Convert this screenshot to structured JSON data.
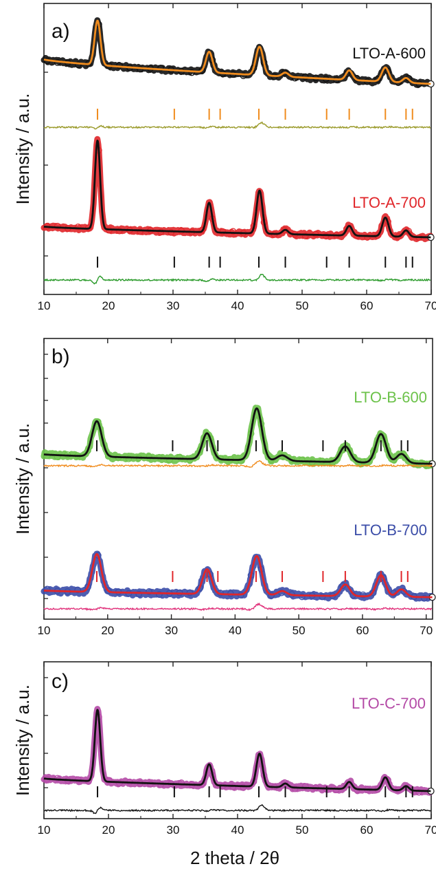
{
  "figure": {
    "x_axis_title": "2 theta / 2θ"
  },
  "chart_data": [
    {
      "panel": "a)",
      "type": "line",
      "ylabel": "Intensity / a.u.",
      "xlim": [
        10,
        70
      ],
      "x_ticks": [
        10,
        20,
        30,
        40,
        50,
        60,
        70
      ],
      "y_tick_count": 3,
      "grid": false,
      "tick_marks_reflections": [
        18.3,
        30.2,
        35.6,
        37.3,
        43.3,
        47.4,
        53.8,
        57.3,
        62.9,
        66.1,
        67.1
      ],
      "series": [
        {
          "name": "LTO-A-600",
          "label_color": "#111111",
          "observed_color": "#111111",
          "fit_color": "#f08c1e",
          "tick_color": "#f08c1e",
          "diff_color": "#9a9a2a",
          "baseline": [
            0.83,
            0.52
          ],
          "peaks": [
            [
              18.3,
              0.56,
              0.45
            ],
            [
              35.6,
              0.26,
              0.5
            ],
            [
              43.4,
              0.36,
              0.55
            ],
            [
              47.4,
              0.05,
              0.5
            ],
            [
              57.3,
              0.12,
              0.5
            ],
            [
              62.9,
              0.18,
              0.55
            ],
            [
              66.1,
              0.06,
              0.5
            ]
          ]
        },
        {
          "name": "LTO-A-700",
          "label_color": "#e0262a",
          "observed_color": "#e0262a",
          "fit_color": "#111111",
          "tick_color": "#111111",
          "diff_color": "#2a9a2a",
          "baseline": [
            0.68,
            0.48
          ],
          "peaks": [
            [
              18.3,
              1.65,
              0.4
            ],
            [
              35.6,
              0.55,
              0.42
            ],
            [
              43.4,
              0.8,
              0.45
            ],
            [
              47.4,
              0.08,
              0.45
            ],
            [
              57.3,
              0.18,
              0.45
            ],
            [
              62.9,
              0.35,
              0.48
            ],
            [
              66.1,
              0.12,
              0.45
            ]
          ]
        }
      ]
    },
    {
      "panel": "b)",
      "type": "line",
      "ylabel": "Intensity / a.u.",
      "xlim": [
        10,
        70
      ],
      "x_ticks": [
        10,
        20,
        30,
        40,
        50,
        60,
        70
      ],
      "y_tick_count": 8,
      "grid": false,
      "tick_marks_reflections": [
        18.3,
        30.2,
        35.6,
        37.3,
        43.3,
        47.4,
        53.8,
        57.3,
        62.9,
        66.1,
        67.1
      ],
      "series": [
        {
          "name": "LTO-B-600",
          "label_color": "#6cc24a",
          "observed_color": "#6cc24a",
          "fit_color": "#111111",
          "tick_color": "#111111",
          "diff_color": "#f08c1e",
          "baseline": [
            0.56,
            0.46
          ],
          "peaks": [
            [
              18.3,
              0.38,
              0.75
            ],
            [
              35.6,
              0.28,
              0.75
            ],
            [
              43.4,
              0.56,
              0.8
            ],
            [
              47.4,
              0.06,
              0.8
            ],
            [
              57.3,
              0.17,
              0.8
            ],
            [
              62.9,
              0.31,
              0.8
            ],
            [
              66.1,
              0.1,
              0.75
            ]
          ]
        },
        {
          "name": "LTO-B-700",
          "label_color": "#3b4da8",
          "observed_color": "#3b4da8",
          "fit_color": "#e0262a",
          "tick_color": "#e0262a",
          "diff_color": "#e0307a",
          "baseline": [
            0.58,
            0.5
          ],
          "peaks": [
            [
              18.3,
              0.46,
              0.7
            ],
            [
              35.6,
              0.3,
              0.7
            ],
            [
              43.4,
              0.47,
              0.75
            ],
            [
              47.4,
              0.05,
              0.7
            ],
            [
              57.3,
              0.14,
              0.7
            ],
            [
              62.9,
              0.26,
              0.72
            ],
            [
              66.1,
              0.09,
              0.7
            ]
          ]
        }
      ]
    },
    {
      "panel": "c)",
      "type": "line",
      "ylabel": "Intensity / a.u.",
      "xlim": [
        10,
        70
      ],
      "x_ticks": [
        10,
        20,
        30,
        40,
        50,
        60,
        70
      ],
      "y_tick_count": 4,
      "grid": false,
      "tick_marks_reflections": [
        18.3,
        30.2,
        35.6,
        37.3,
        43.3,
        47.4,
        53.8,
        57.3,
        62.9,
        66.1,
        67.1
      ],
      "series": [
        {
          "name": "LTO-C-700",
          "label_color": "#b44aa6",
          "observed_color": "#b44aa6",
          "fit_color": "#111111",
          "tick_color": "#111111",
          "diff_color": "#111111",
          "baseline": [
            0.75,
            0.52
          ],
          "peaks": [
            [
              18.3,
              1.3,
              0.42
            ],
            [
              35.6,
              0.38,
              0.45
            ],
            [
              43.4,
              0.6,
              0.48
            ],
            [
              47.4,
              0.07,
              0.45
            ],
            [
              57.3,
              0.13,
              0.45
            ],
            [
              62.9,
              0.23,
              0.48
            ],
            [
              66.1,
              0.08,
              0.45
            ]
          ]
        }
      ]
    }
  ]
}
